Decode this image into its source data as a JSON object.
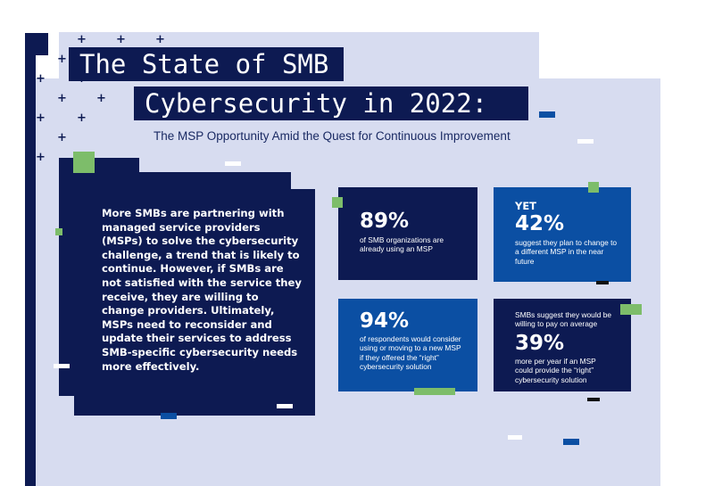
{
  "title": {
    "line1": "The State of SMB",
    "line2": "Cybersecurity in 2022:",
    "subtitle": "The MSP Opportunity Amid the Quest for Continuous Improvement"
  },
  "intro": {
    "text": "More SMBs are partnering with managed service providers (MSPs) to solve the cybersecurity challenge, a trend that is likely to continue. However, if SMBs are not satisfied with the service they receive, they are willing to change providers. Ultimately, MSPs need to reconsider and update their services to address SMB-specific cybersecurity needs more effectively."
  },
  "stats": {
    "card1": {
      "value": "89%",
      "text": "of SMB organizations are already using an MSP"
    },
    "card2": {
      "prefix": "YET",
      "value": "42%",
      "text": "suggest they plan to change to a different MSP in the near future"
    },
    "card3": {
      "value": "94%",
      "text": "of respondents would consider using or moving to a new MSP if they offered the “right” cybersecurity solution"
    },
    "card4": {
      "prefix": "SMBs suggest they would be willing to pay on average",
      "value": "39%",
      "text": "more per year if an MSP could provide the “right” cybersecurity solution"
    }
  },
  "colors": {
    "navy": "#0d1a52",
    "blue": "#0b4fa3",
    "lavender": "#d7dcf0",
    "green": "#7dbd6a"
  },
  "icons": {
    "decoration": "plus-icon"
  }
}
